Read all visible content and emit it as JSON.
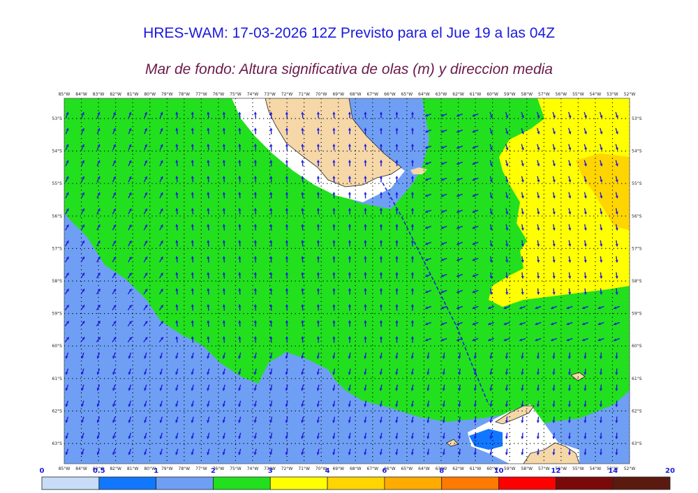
{
  "header": {
    "title": "HRES-WAM: 17-03-2026 12Z Previsto para el Jue 19 a las 04Z",
    "subtitle": "Mar de fondo: Altura significativa de olas (m) y direccion media"
  },
  "map": {
    "lon_labels": [
      "85°W",
      "84°W",
      "83°W",
      "82°W",
      "81°W",
      "80°W",
      "79°W",
      "78°W",
      "77°W",
      "76°W",
      "75°W",
      "74°W",
      "73°W",
      "72°W",
      "71°W",
      "70°W",
      "69°W",
      "68°W",
      "67°W",
      "66°W",
      "65°W",
      "64°W",
      "63°W",
      "62°W",
      "61°W",
      "60°W",
      "59°W",
      "58°W",
      "57°W",
      "56°W",
      "55°W",
      "54°W",
      "53°W",
      "52°W"
    ],
    "lat_labels": [
      "53°S",
      "54°S",
      "55°S",
      "56°S",
      "57°S",
      "58°S",
      "59°S",
      "60°S",
      "61°S",
      "62°S",
      "63°S"
    ],
    "colors": {
      "land": "#f5d7a8",
      "ice": "#ffffff",
      "band_1_2": "#6f9ff5",
      "band_2_3": "#22e01e",
      "band_3_4": "#ffff00",
      "band_4_6": "#ffd500",
      "band_05_1": "#1177ff",
      "arrow": "#1a1adc"
    }
  },
  "colorbar": {
    "ticks": [
      "0",
      "0.5",
      "1",
      "2",
      "3",
      "4",
      "6",
      "8",
      "10",
      "12",
      "14",
      "20"
    ],
    "colors": [
      "#c8dcf8",
      "#1177ff",
      "#6f9ff5",
      "#22e01e",
      "#ffff00",
      "#ffd500",
      "#ffab00",
      "#ff7a00",
      "#ff0000",
      "#7a0a0a",
      "#5a1a10"
    ]
  }
}
